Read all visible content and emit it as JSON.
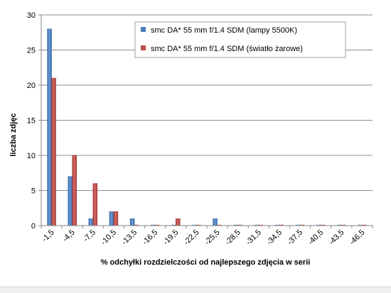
{
  "chart_data": {
    "type": "bar",
    "title": "",
    "xlabel": "% odchyłki  rozdzielczości  od najlepszego  zdjęcia  w serii",
    "ylabel": "liczba zdjęc",
    "ylim": [
      0,
      30
    ],
    "yticks": [
      0,
      5,
      10,
      15,
      20,
      25,
      30
    ],
    "grid": true,
    "legend_position": "top-right",
    "categories": [
      "-1,5",
      "-4,5",
      "-7,5",
      "-10,5",
      "-13,5",
      "-16,5",
      "-19,5",
      "-22,5",
      "-25,5",
      "-28,5",
      "-31,5",
      "-34,5",
      "-37,5",
      "-40,5",
      "-43,5",
      "-46,5"
    ],
    "series": [
      {
        "name": "smc DA* 55 mm f/1.4 SDM (lampy 5500K)",
        "color": "#4A7EBB",
        "values": [
          28,
          7,
          1,
          2,
          1,
          0,
          0,
          0,
          1,
          0,
          0,
          0,
          0,
          0,
          0,
          0
        ]
      },
      {
        "name": "smc DA* 55 mm f/1.4 SDM (światło żarowe)",
        "color": "#BE4B48",
        "values": [
          21,
          10,
          6,
          2,
          0,
          0,
          1,
          0,
          0,
          0,
          0,
          0,
          0,
          0,
          0,
          0
        ]
      }
    ]
  }
}
